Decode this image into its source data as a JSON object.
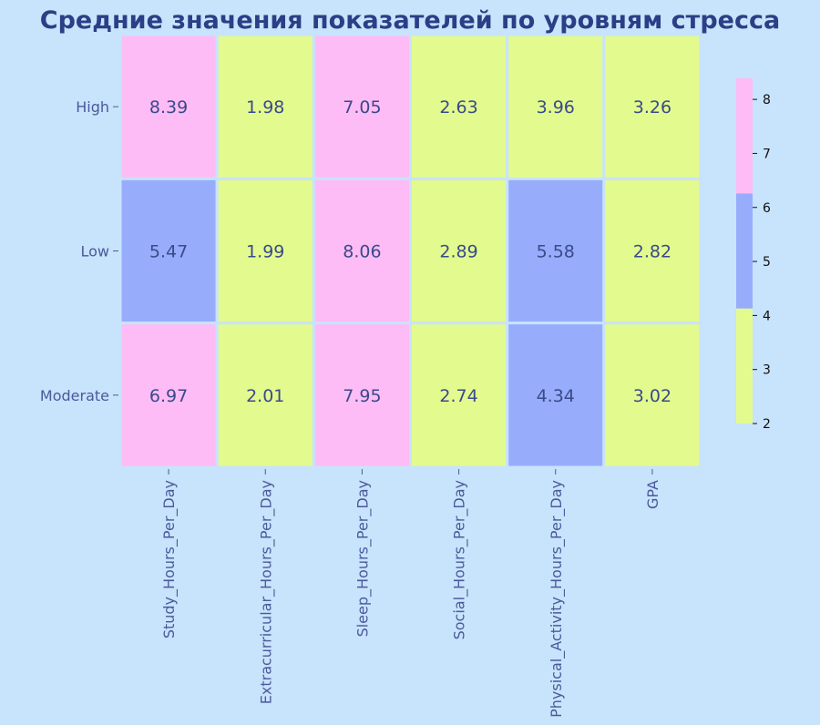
{
  "chart_data": {
    "type": "heatmap",
    "title": "Средние значения показателей по уровням стресса",
    "rows": [
      "High",
      "Low",
      "Moderate"
    ],
    "columns": [
      "Study_Hours_Per_Day",
      "Extracurricular_Hours_Per_Day",
      "Sleep_Hours_Per_Day",
      "Social_Hours_Per_Day",
      "Physical_Activity_Hours_Per_Day",
      "GPA"
    ],
    "values": [
      [
        8.39,
        1.98,
        7.05,
        2.63,
        3.96,
        3.26
      ],
      [
        5.47,
        1.99,
        8.06,
        2.89,
        5.58,
        2.82
      ],
      [
        6.97,
        2.01,
        7.95,
        2.74,
        4.34,
        3.02
      ]
    ],
    "colorbar": {
      "range": [
        2,
        8.39
      ],
      "ticks": [
        2,
        3,
        4,
        5,
        6,
        7,
        8
      ],
      "bins": [
        {
          "from": 2,
          "to": 4.13,
          "color": "#e3fa8f"
        },
        {
          "from": 4.13,
          "to": 6.26,
          "color": "#97adfc"
        },
        {
          "from": 6.26,
          "to": 8.39,
          "color": "#fdbcf5"
        }
      ]
    },
    "colors": {
      "background": "#c8e3fc",
      "title": "#2a3f86",
      "labels": "#4a5a9a",
      "cell_text": "#3a4a8a"
    }
  }
}
